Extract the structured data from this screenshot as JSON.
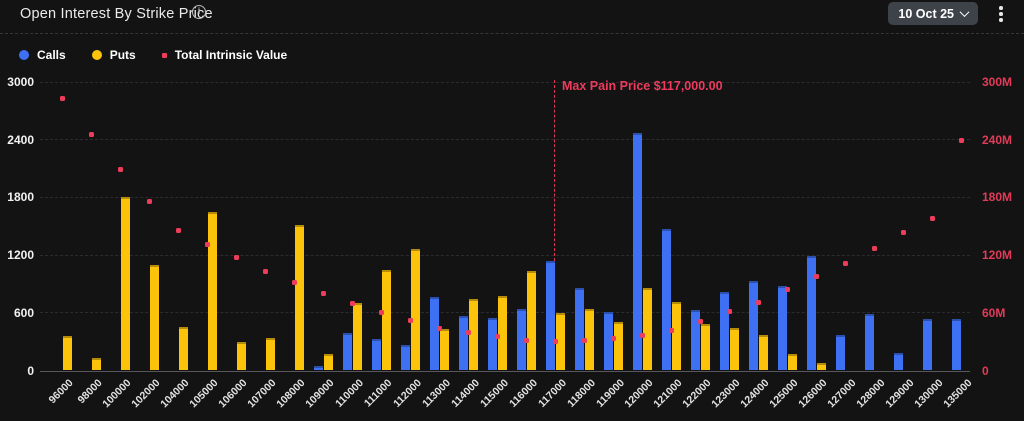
{
  "header": {
    "title": "Open Interest By Strike Price",
    "date_selector_label": "10 Oct 25"
  },
  "icons": {
    "info_glyph": "i"
  },
  "legend": [
    {
      "label": "Calls",
      "color": "#3d70f2",
      "shape": "circle"
    },
    {
      "label": "Puts",
      "color": "#fcc30b",
      "shape": "circle"
    },
    {
      "label": "Total Intrinsic Value",
      "color": "#ed3c5c",
      "shape": "square"
    }
  ],
  "colors": {
    "background": "#131314",
    "calls": "#3d70f2",
    "puts": "#fcc30b",
    "intrinsic": "#ed3c5c",
    "right_axis_text": "#e23b58",
    "max_pain": "#ed3b5e"
  },
  "chart_data": {
    "type": "bar",
    "title": "Open Interest By Strike Price",
    "categories": [
      "96000",
      "98000",
      "100000",
      "102000",
      "104000",
      "105000",
      "106000",
      "107000",
      "108000",
      "109000",
      "110000",
      "111000",
      "112000",
      "113000",
      "114000",
      "115000",
      "116000",
      "117000",
      "118000",
      "119000",
      "120000",
      "121000",
      "122000",
      "123000",
      "124000",
      "125000",
      "126000",
      "127000",
      "128000",
      "129000",
      "130000",
      "135000"
    ],
    "series": [
      {
        "name": "Calls",
        "type": "bar",
        "axis": "left",
        "color": "#3d70f2",
        "values": [
          0,
          0,
          0,
          0,
          0,
          0,
          0,
          0,
          0,
          50,
          385,
          330,
          270,
          760,
          570,
          545,
          635,
          1135,
          855,
          610,
          2465,
          1470,
          630,
          820,
          935,
          875,
          1190,
          365,
          590,
          185,
          540,
          540
        ]
      },
      {
        "name": "Puts",
        "type": "bar",
        "axis": "left",
        "color": "#fcc30b",
        "values": [
          355,
          125,
          1800,
          1100,
          450,
          1645,
          300,
          340,
          1510,
          175,
          700,
          1040,
          1265,
          435,
          740,
          775,
          1030,
          600,
          640,
          500,
          860,
          715,
          480,
          440,
          370,
          175,
          80,
          0,
          0,
          0,
          0,
          0
        ]
      },
      {
        "name": "Total Intrinsic Value",
        "type": "scatter",
        "axis": "right",
        "color": "#ed3c5c",
        "values_millions": [
          283,
          245,
          209,
          176,
          146,
          131,
          118,
          103,
          92,
          80,
          70,
          60,
          52,
          44,
          39,
          35,
          31,
          30,
          31,
          33,
          36,
          42,
          51,
          61,
          71,
          84,
          98,
          111,
          127,
          143,
          158,
          239
        ]
      }
    ],
    "left_axis": {
      "ticks": [
        0,
        600,
        1200,
        1800,
        2400,
        3000
      ],
      "tick_labels": [
        "0",
        "600",
        "1200",
        "1800",
        "2400",
        "3000"
      ],
      "max": 3000
    },
    "right_axis": {
      "ticks_millions": [
        0,
        60,
        120,
        180,
        240,
        300
      ],
      "tick_labels": [
        "0",
        "60M",
        "120M",
        "180M",
        "240M",
        "300M"
      ],
      "max_millions": 300
    },
    "annotation": {
      "label": "Max Pain Price $117,000.00",
      "strike": "117000"
    },
    "grid": "horizontal-dashed",
    "legend_position": "top-left"
  }
}
